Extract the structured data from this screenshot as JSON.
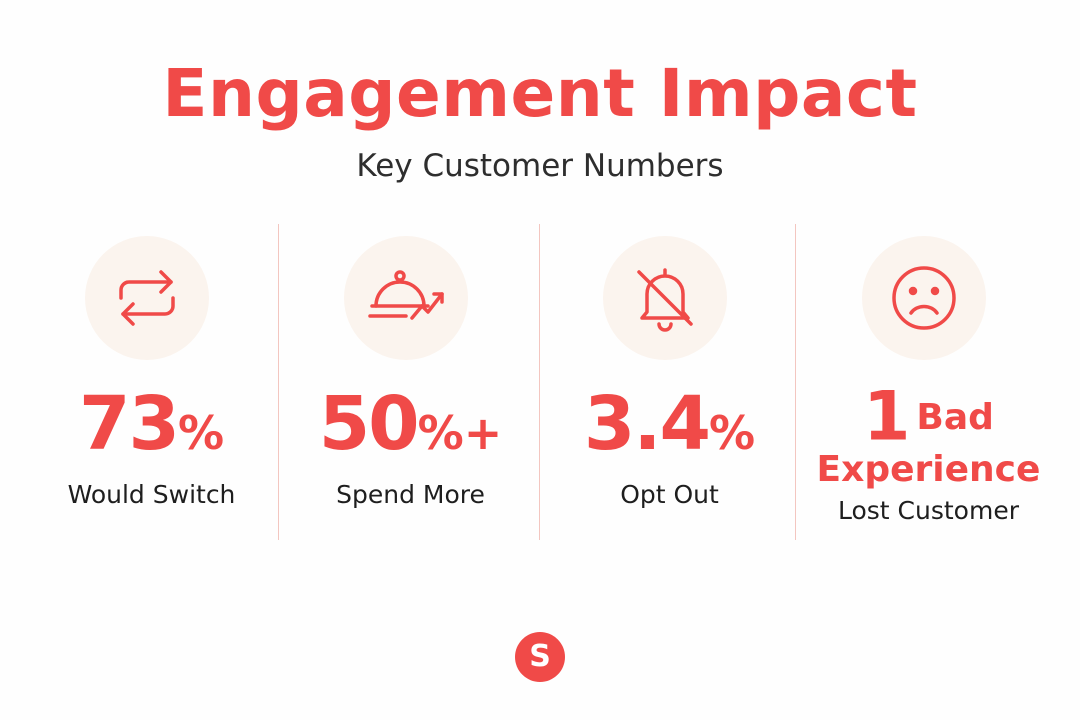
{
  "header": {
    "title": "Engagement Impact",
    "subtitle": "Key Customer Numbers"
  },
  "stats": [
    {
      "icon": "repeat-arrows-icon",
      "number": "73",
      "unit": "%",
      "label": "Would Switch"
    },
    {
      "icon": "food-cloche-trend-up-icon",
      "number": "50",
      "unit": "%+",
      "label": "Spend More"
    },
    {
      "icon": "bell-off-icon",
      "number": "3.4",
      "unit": "%",
      "label": "Opt Out"
    },
    {
      "icon": "sad-face-icon",
      "number": "1",
      "word": "Bad",
      "line2": "Experience",
      "label": "Lost Customer"
    }
  ],
  "logo": {
    "letter": "S",
    "icon": "brand-logo-icon"
  },
  "colors": {
    "accent": "#F04A48",
    "icon_bg": "#FBF4EE",
    "divider": "#F3C6C0",
    "text": "#2E2E2E"
  }
}
